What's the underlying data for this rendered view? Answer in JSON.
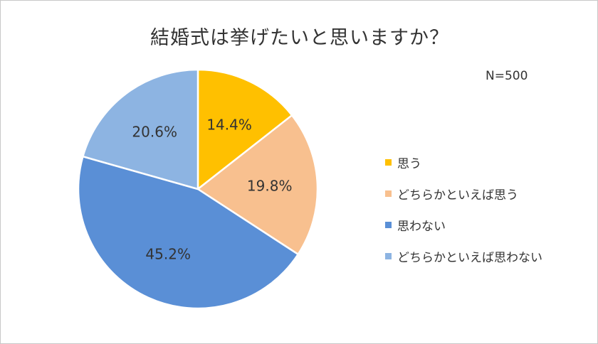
{
  "chart_data": {
    "type": "pie",
    "title": "結婚式は挙げたいと思いますか？",
    "note": "N=500",
    "legend_position": "right",
    "slices": [
      {
        "label": "思う",
        "value": 14.4,
        "display": "14.4%",
        "color": "#FFC000"
      },
      {
        "label": "どちらかといえば思う",
        "value": 19.8,
        "display": "19.8%",
        "color": "#F8C08F"
      },
      {
        "label": "思わない",
        "value": 45.2,
        "display": "45.2%",
        "color": "#5A8FD6"
      },
      {
        "label": "どちらかといえば思わない",
        "value": 20.6,
        "display": "20.6%",
        "color": "#8DB4E2"
      }
    ]
  }
}
